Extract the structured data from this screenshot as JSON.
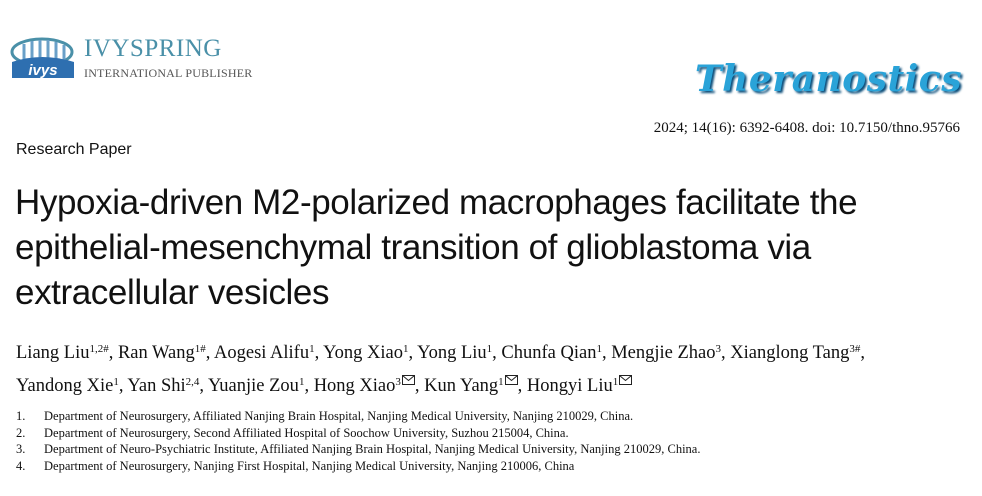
{
  "publisher": {
    "name": "IVYSPRING",
    "subtitle": "INTERNATIONAL PUBLISHER",
    "logo_text": "ivys"
  },
  "journal": "Theranostics",
  "citation": "2024; 14(16): 6392-6408. doi: 10.7150/thno.95766",
  "article_type": "Research Paper",
  "title": "Hypoxia-driven M2-polarized macrophages facilitate the epithelial-mesenchymal transition of glioblastoma via extracellular vesicles",
  "author_separator": ", ",
  "authors": [
    {
      "name": "Liang Liu",
      "sup": "1,2#",
      "corresponding": false
    },
    {
      "name": "Ran Wang",
      "sup": "1#",
      "corresponding": false
    },
    {
      "name": "Aogesi Alifu",
      "sup": "1",
      "corresponding": false
    },
    {
      "name": "Yong Xiao",
      "sup": "1",
      "corresponding": false
    },
    {
      "name": "Yong Liu",
      "sup": "1",
      "corresponding": false
    },
    {
      "name": "Chunfa Qian",
      "sup": "1",
      "corresponding": false
    },
    {
      "name": "Mengjie Zhao",
      "sup": "3",
      "corresponding": false
    },
    {
      "name": "Xianglong Tang",
      "sup": "3#",
      "corresponding": false
    },
    {
      "name": "Yandong Xie",
      "sup": "1",
      "corresponding": false
    },
    {
      "name": "Yan Shi",
      "sup": "2,4",
      "corresponding": false
    },
    {
      "name": "Yuanjie Zou",
      "sup": "1",
      "corresponding": false
    },
    {
      "name": "Hong Xiao",
      "sup": "3",
      "corresponding": true
    },
    {
      "name": "Kun Yang",
      "sup": "1",
      "corresponding": true
    },
    {
      "name": "Hongyi Liu",
      "sup": "1",
      "corresponding": true
    }
  ],
  "affiliations": [
    {
      "number": "1.",
      "text": "Department of Neurosurgery, Affiliated Nanjing Brain Hospital, Nanjing Medical University, Nanjing 210029, China."
    },
    {
      "number": "2.",
      "text": "Department of Neurosurgery, Second Affiliated Hospital of Soochow University, Suzhou 215004, China."
    },
    {
      "number": "3.",
      "text": "Department of Neuro-Psychiatric Institute, Affiliated Nanjing Brain Hospital, Nanjing Medical University, Nanjing 210029, China."
    },
    {
      "number": "4.",
      "text": "Department of Neurosurgery, Nanjing First Hospital, Nanjing Medical University, Nanjing 210006, China"
    }
  ]
}
